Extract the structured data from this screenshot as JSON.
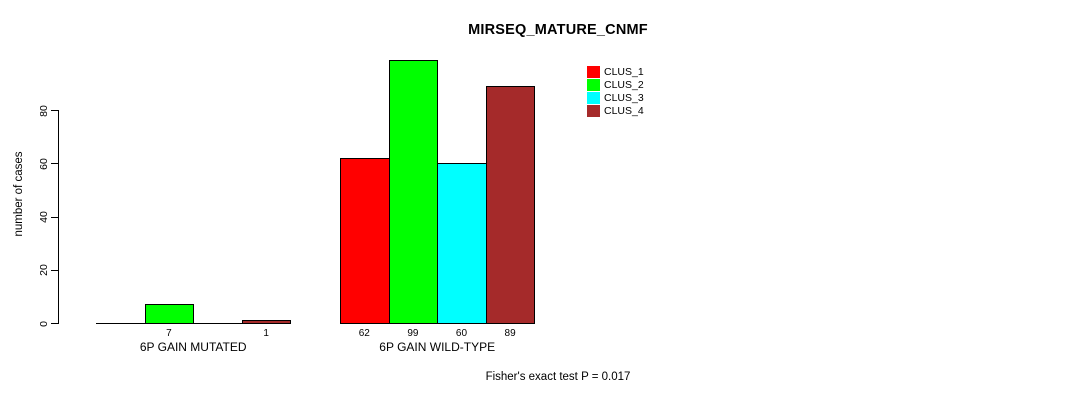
{
  "chart_data": {
    "type": "bar",
    "title": "MIRSEQ_MATURE_CNMF",
    "ylabel": "number of cases",
    "yticks": [
      0,
      20,
      40,
      60,
      80
    ],
    "grid": false,
    "legend": {
      "position": "top-right",
      "entries": [
        {
          "label": "CLUS_1",
          "color": "#FF0000"
        },
        {
          "label": "CLUS_2",
          "color": "#00FF00"
        },
        {
          "label": "CLUS_3",
          "color": "#00FFFF"
        },
        {
          "label": "CLUS_4",
          "color": "#A52A2A"
        }
      ]
    },
    "groups": [
      {
        "label": "6P GAIN MUTATED",
        "values": [
          0,
          7,
          0,
          1
        ],
        "bar_labels": [
          "",
          "7",
          "",
          "1"
        ]
      },
      {
        "label": "6P GAIN WILD-TYPE",
        "values": [
          62,
          99,
          60,
          89
        ],
        "bar_labels": [
          "62",
          "99",
          "60",
          "89"
        ]
      }
    ],
    "footnote": "Fisher's exact test P = 0.017"
  }
}
